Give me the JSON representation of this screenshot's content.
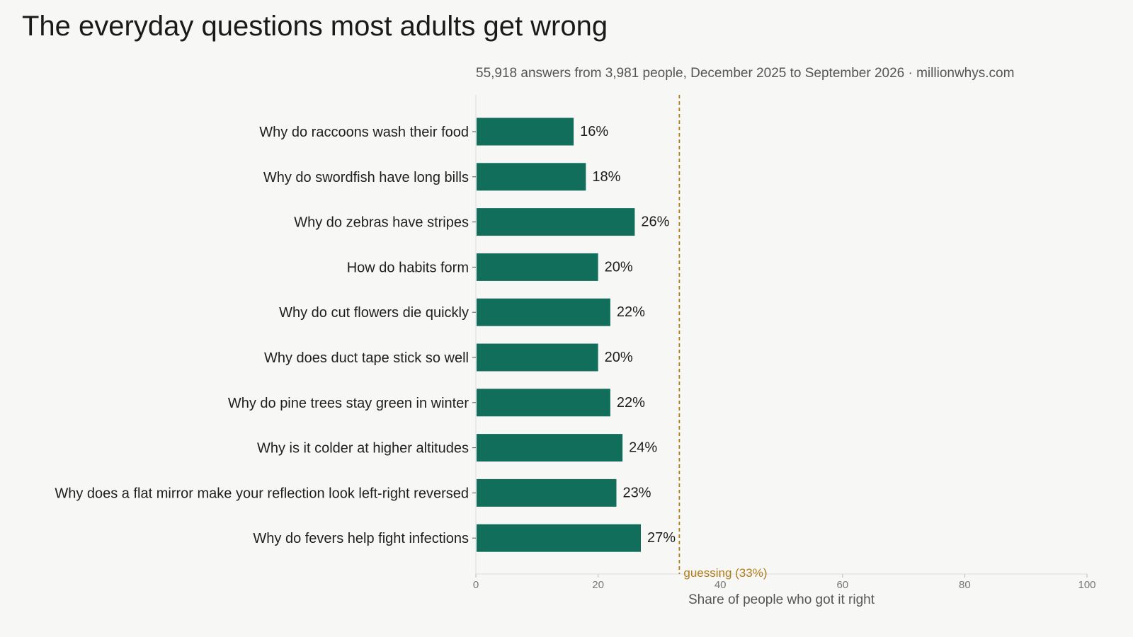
{
  "header": {
    "title": "The everyday questions most adults get wrong",
    "subtitle": "55,918 answers from 3,981 people, December 2025 to September 2026  ·  millionwhys.com"
  },
  "colors": {
    "background": "#f7f7f5",
    "bar": "#116e5a",
    "reference": "#b07d1a",
    "text": "#1e1e1e",
    "muted": "#777777"
  },
  "chart_data": {
    "type": "bar",
    "orientation": "horizontal",
    "categories": [
      "Why do raccoons wash their food",
      "Why do swordfish have long bills",
      "Why do zebras have stripes",
      "How do habits form",
      "Why do cut flowers die quickly",
      "Why does duct tape stick so well",
      "Why do pine trees stay green in winter",
      "Why is it colder at higher altitudes",
      "Why does a flat mirror make your reflection look left-right reversed",
      "Why do fevers help fight infections"
    ],
    "values": [
      16,
      18,
      26,
      20,
      22,
      20,
      22,
      24,
      23,
      27
    ],
    "value_labels": [
      "16%",
      "18%",
      "26%",
      "20%",
      "22%",
      "20%",
      "22%",
      "24%",
      "23%",
      "27%"
    ],
    "xlabel": "Share of people who got it right",
    "ylabel": "",
    "xlim": [
      0,
      100
    ],
    "xticks": [
      0,
      20,
      40,
      60,
      80,
      100
    ],
    "grid": false,
    "reference_line": {
      "value": 33.3,
      "label": "guessing (33%)",
      "style": "dashed"
    }
  }
}
